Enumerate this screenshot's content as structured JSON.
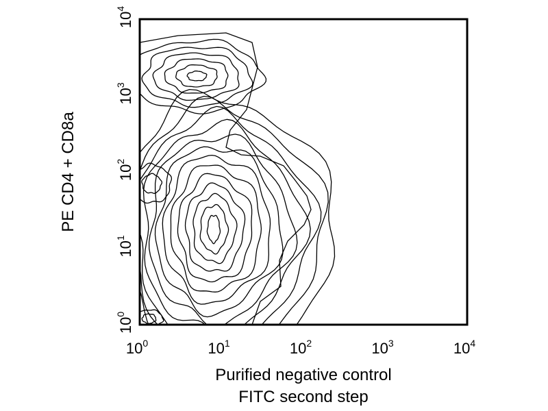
{
  "chart_data": {
    "type": "contour",
    "xlabel_lines": [
      "Purified negative control",
      "FITC second step"
    ],
    "ylabel": "PE CD4 + CD8a",
    "x_scale": "log",
    "y_scale": "log",
    "xlim": [
      1,
      10000
    ],
    "ylim": [
      1,
      10000
    ],
    "x_ticks": [
      {
        "value": 1,
        "base": "10",
        "exp": "0"
      },
      {
        "value": 10,
        "base": "10",
        "exp": "1"
      },
      {
        "value": 100,
        "base": "10",
        "exp": "2"
      },
      {
        "value": 1000,
        "base": "10",
        "exp": "3"
      },
      {
        "value": 10000,
        "base": "10",
        "exp": "4"
      }
    ],
    "y_ticks": [
      {
        "value": 1,
        "base": "10",
        "exp": "0"
      },
      {
        "value": 10,
        "base": "10",
        "exp": "1"
      },
      {
        "value": 100,
        "base": "10",
        "exp": "2"
      },
      {
        "value": 1000,
        "base": "10",
        "exp": "3"
      },
      {
        "value": 10000,
        "base": "10",
        "exp": "4"
      }
    ],
    "grid": false,
    "legend": "none",
    "populations": [
      {
        "cx": 8,
        "cy": 18,
        "levels": 13
      },
      {
        "cx": 5,
        "cy": 1800,
        "levels": 6
      },
      {
        "cx": 1.3,
        "cy": 1.2,
        "levels": 2
      },
      {
        "cx": 1.4,
        "cy": 70,
        "levels": 2
      }
    ]
  }
}
